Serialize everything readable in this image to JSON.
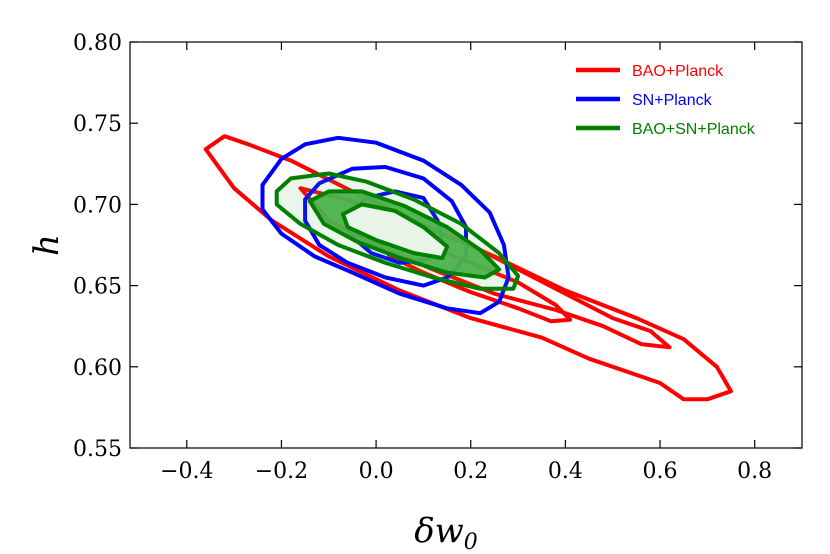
{
  "chart_data": {
    "type": "contour",
    "xlabel": "δw₀",
    "ylabel": "h",
    "xlim": [
      -0.52,
      0.9
    ],
    "ylim": [
      0.55,
      0.8
    ],
    "x_ticks": [
      -0.4,
      -0.2,
      0.0,
      0.2,
      0.4,
      0.6,
      0.8
    ],
    "x_tick_labels": [
      "−0.4",
      "−0.2",
      "0.0",
      "0.2",
      "0.4",
      "0.6",
      "0.8"
    ],
    "y_ticks": [
      0.55,
      0.6,
      0.65,
      0.7,
      0.75,
      0.8
    ],
    "y_tick_labels": [
      "0.55",
      "0.60",
      "0.65",
      "0.70",
      "0.75",
      "0.80"
    ],
    "legend_position": "top-right",
    "series": [
      {
        "name": "BAO+Planck",
        "color": "#ff0000",
        "filled": false,
        "contours": [
          {
            "level": "outer",
            "points": [
              [
                -0.36,
                0.734
              ],
              [
                -0.32,
                0.742
              ],
              [
                -0.27,
                0.737
              ],
              [
                -0.18,
                0.727
              ],
              [
                -0.05,
                0.708
              ],
              [
                0.1,
                0.687
              ],
              [
                0.25,
                0.668
              ],
              [
                0.4,
                0.647
              ],
              [
                0.55,
                0.63
              ],
              [
                0.65,
                0.617
              ],
              [
                0.72,
                0.6
              ],
              [
                0.75,
                0.585
              ],
              [
                0.7,
                0.58
              ],
              [
                0.65,
                0.58
              ],
              [
                0.6,
                0.59
              ],
              [
                0.55,
                0.595
              ],
              [
                0.45,
                0.605
              ],
              [
                0.35,
                0.618
              ],
              [
                0.2,
                0.63
              ],
              [
                0.05,
                0.647
              ],
              [
                -0.1,
                0.668
              ],
              [
                -0.22,
                0.69
              ],
              [
                -0.3,
                0.71
              ],
              [
                -0.36,
                0.734
              ]
            ]
          },
          {
            "level": "inner",
            "points": [
              [
                -0.16,
                0.71
              ],
              [
                -0.05,
                0.702
              ],
              [
                0.08,
                0.688
              ],
              [
                0.2,
                0.675
              ],
              [
                0.3,
                0.66
              ],
              [
                0.4,
                0.645
              ],
              [
                0.5,
                0.63
              ],
              [
                0.58,
                0.622
              ],
              [
                0.62,
                0.612
              ],
              [
                0.56,
                0.614
              ],
              [
                0.48,
                0.625
              ],
              [
                0.38,
                0.635
              ],
              [
                0.25,
                0.645
              ],
              [
                0.12,
                0.66
              ],
              [
                0.0,
                0.675
              ],
              [
                -0.1,
                0.69
              ],
              [
                -0.16,
                0.71
              ]
            ]
          },
          {
            "level": "core",
            "points": [
              [
                -0.01,
                0.682
              ],
              [
                0.03,
                0.684
              ],
              [
                0.1,
                0.676
              ],
              [
                0.2,
                0.664
              ],
              [
                0.3,
                0.652
              ],
              [
                0.38,
                0.638
              ],
              [
                0.41,
                0.629
              ],
              [
                0.37,
                0.628
              ],
              [
                0.3,
                0.636
              ],
              [
                0.2,
                0.646
              ],
              [
                0.1,
                0.658
              ],
              [
                0.03,
                0.668
              ],
              [
                -0.01,
                0.682
              ]
            ]
          }
        ]
      },
      {
        "name": "SN+Planck",
        "color": "#0000ff",
        "filled": false,
        "contours": [
          {
            "level": "outer",
            "points": [
              [
                -0.24,
                0.712
              ],
              [
                -0.2,
                0.728
              ],
              [
                -0.15,
                0.737
              ],
              [
                -0.08,
                0.741
              ],
              [
                0.0,
                0.738
              ],
              [
                0.1,
                0.727
              ],
              [
                0.18,
                0.712
              ],
              [
                0.24,
                0.695
              ],
              [
                0.27,
                0.675
              ],
              [
                0.28,
                0.655
              ],
              [
                0.26,
                0.64
              ],
              [
                0.22,
                0.633
              ],
              [
                0.15,
                0.636
              ],
              [
                0.05,
                0.645
              ],
              [
                -0.05,
                0.658
              ],
              [
                -0.13,
                0.668
              ],
              [
                -0.2,
                0.682
              ],
              [
                -0.24,
                0.697
              ],
              [
                -0.24,
                0.712
              ]
            ]
          },
          {
            "level": "inner",
            "points": [
              [
                -0.15,
                0.703
              ],
              [
                -0.12,
                0.713
              ],
              [
                -0.05,
                0.722
              ],
              [
                0.02,
                0.723
              ],
              [
                0.1,
                0.716
              ],
              [
                0.16,
                0.702
              ],
              [
                0.19,
                0.686
              ],
              [
                0.19,
                0.668
              ],
              [
                0.15,
                0.655
              ],
              [
                0.1,
                0.65
              ],
              [
                0.02,
                0.655
              ],
              [
                -0.06,
                0.664
              ],
              [
                -0.12,
                0.675
              ],
              [
                -0.15,
                0.69
              ],
              [
                -0.15,
                0.703
              ]
            ]
          },
          {
            "level": "core",
            "points": [
              [
                -0.06,
                0.695
              ],
              [
                -0.02,
                0.704
              ],
              [
                0.04,
                0.708
              ],
              [
                0.1,
                0.704
              ],
              [
                0.13,
                0.69
              ],
              [
                0.14,
                0.676
              ],
              [
                0.11,
                0.666
              ],
              [
                0.05,
                0.664
              ],
              [
                -0.01,
                0.67
              ],
              [
                -0.05,
                0.68
              ],
              [
                -0.06,
                0.695
              ]
            ]
          }
        ]
      },
      {
        "name": "BAO+SN+Planck",
        "color": "#008000",
        "fill_color": "#4cb24c",
        "filled": true,
        "contours": [
          {
            "level": "outer",
            "points": [
              [
                -0.21,
                0.708
              ],
              [
                -0.18,
                0.716
              ],
              [
                -0.1,
                0.719
              ],
              [
                -0.02,
                0.714
              ],
              [
                0.08,
                0.703
              ],
              [
                0.18,
                0.688
              ],
              [
                0.26,
                0.67
              ],
              [
                0.3,
                0.656
              ],
              [
                0.29,
                0.648
              ],
              [
                0.22,
                0.648
              ],
              [
                0.12,
                0.655
              ],
              [
                0.02,
                0.664
              ],
              [
                -0.08,
                0.675
              ],
              [
                -0.16,
                0.688
              ],
              [
                -0.21,
                0.7
              ],
              [
                -0.21,
                0.708
              ]
            ]
          },
          {
            "level": "inner",
            "points": [
              [
                -0.14,
                0.702
              ],
              [
                -0.1,
                0.708
              ],
              [
                -0.03,
                0.708
              ],
              [
                0.06,
                0.699
              ],
              [
                0.15,
                0.686
              ],
              [
                0.22,
                0.672
              ],
              [
                0.26,
                0.66
              ],
              [
                0.23,
                0.655
              ],
              [
                0.15,
                0.658
              ],
              [
                0.06,
                0.666
              ],
              [
                -0.04,
                0.677
              ],
              [
                -0.11,
                0.688
              ],
              [
                -0.14,
                0.702
              ]
            ]
          },
          {
            "level": "core",
            "points": [
              [
                -0.07,
                0.694
              ],
              [
                -0.03,
                0.7
              ],
              [
                0.04,
                0.696
              ],
              [
                0.1,
                0.686
              ],
              [
                0.15,
                0.674
              ],
              [
                0.14,
                0.667
              ],
              [
                0.08,
                0.67
              ],
              [
                0.0,
                0.678
              ],
              [
                -0.06,
                0.686
              ],
              [
                -0.07,
                0.694
              ]
            ]
          }
        ]
      }
    ]
  }
}
